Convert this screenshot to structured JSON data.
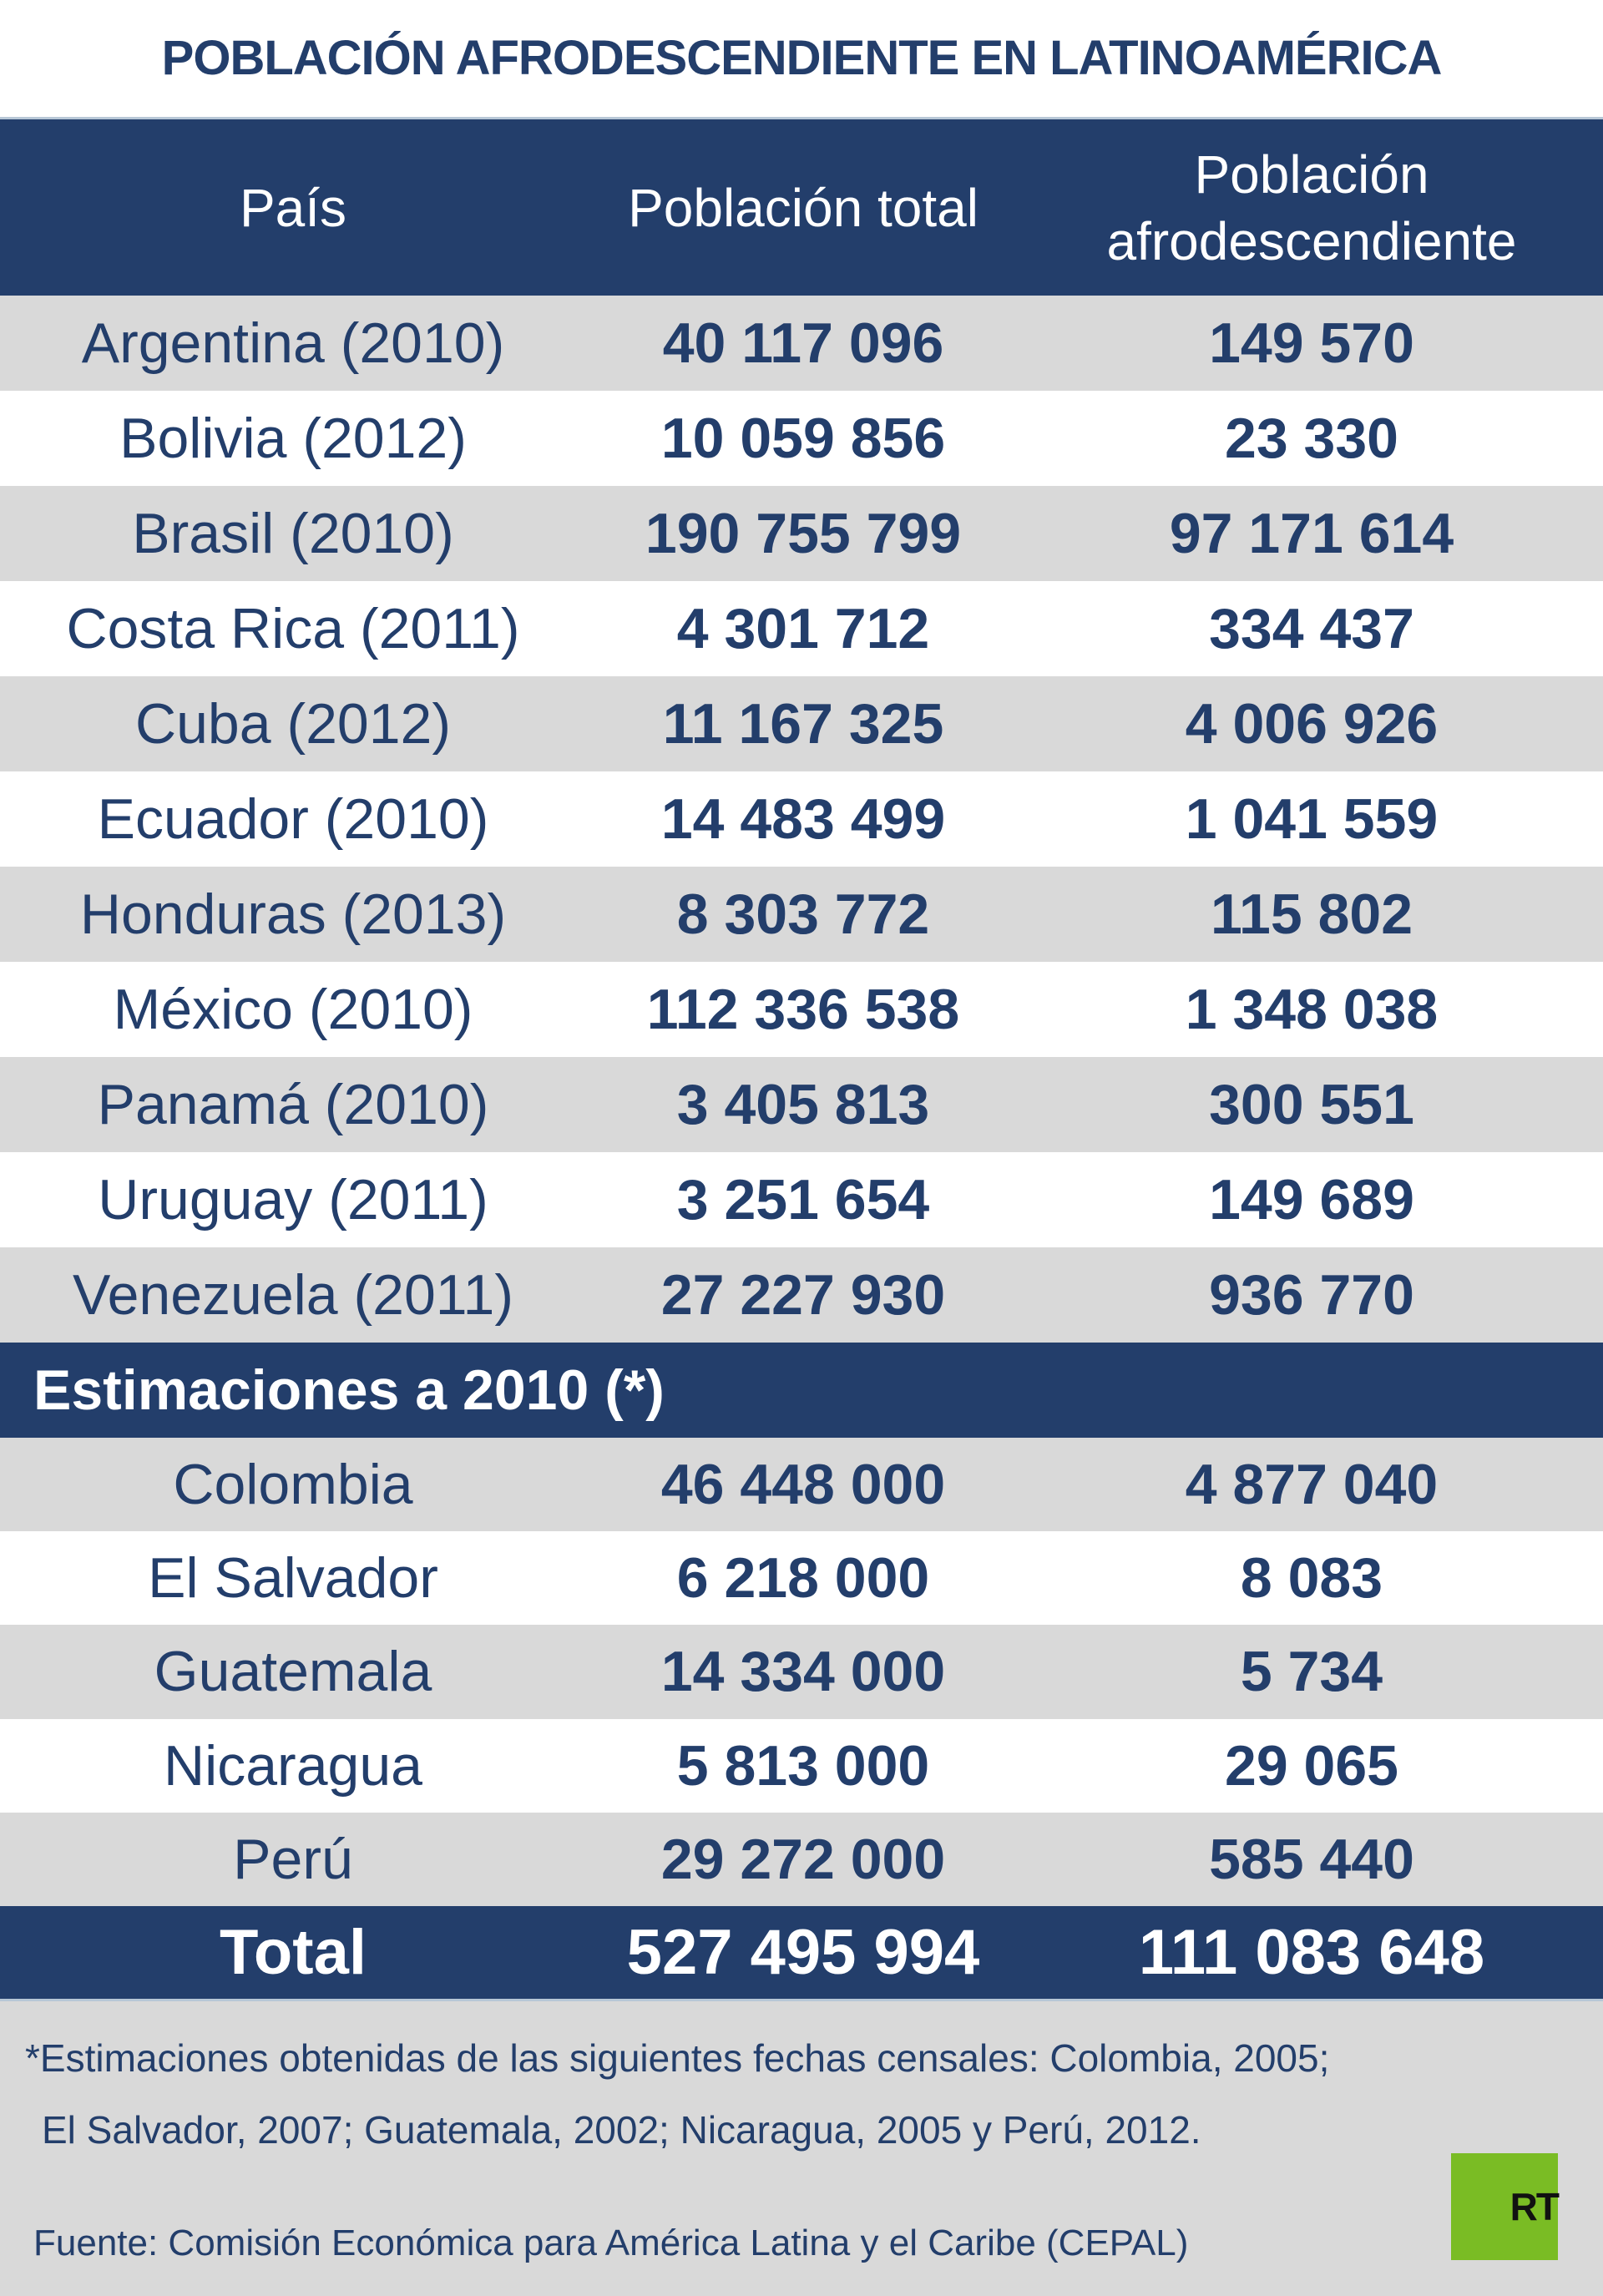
{
  "title": "POBLACIÓN AFRODESCENDIENTE EN LATINOAMÉRICA",
  "headers": {
    "country": "País",
    "total": "Población total",
    "afro_line1": "Población",
    "afro_line2": "afrodescendiente"
  },
  "census_rows": [
    {
      "country": "Argentina (2010)",
      "total": "40 117 096",
      "afro": "149 570"
    },
    {
      "country": "Bolivia (2012)",
      "total": "10 059 856",
      "afro": "23 330"
    },
    {
      "country": "Brasil (2010)",
      "total": "190 755 799",
      "afro": "97 171 614"
    },
    {
      "country": "Costa Rica (2011)",
      "total": "4 301 712",
      "afro": "334 437"
    },
    {
      "country": "Cuba (2012)",
      "total": "11 167 325",
      "afro": "4 006 926"
    },
    {
      "country": "Ecuador (2010)",
      "total": "14 483 499",
      "afro": "1 041 559"
    },
    {
      "country": "Honduras (2013)",
      "total": "8 303 772",
      "afro": "115 802"
    },
    {
      "country": "México (2010)",
      "total": "112 336 538",
      "afro": "1 348 038"
    },
    {
      "country": "Panamá (2010)",
      "total": "3 405 813",
      "afro": "300 551"
    },
    {
      "country": "Uruguay (2011)",
      "total": "3 251 654",
      "afro": "149 689"
    },
    {
      "country": "Venezuela (2011)",
      "total": "27 227 930",
      "afro": "936 770"
    }
  ],
  "estimates_header": "Estimaciones a 2010 (*)",
  "estimate_rows": [
    {
      "country": "Colombia",
      "total": "46 448 000",
      "afro": "4 877 040"
    },
    {
      "country": "El Salvador",
      "total": "6 218 000",
      "afro": "8 083"
    },
    {
      "country": "Guatemala",
      "total": "14 334 000",
      "afro": "5 734"
    },
    {
      "country": "Nicaragua",
      "total": "5 813 000",
      "afro": "29 065"
    },
    {
      "country": "Perú",
      "total": "29 272 000",
      "afro": "585 440"
    }
  ],
  "total": {
    "label": "Total",
    "total": "527 495 994",
    "afro": "111 083 648"
  },
  "note_line1": "*Estimaciones obtenidas de las siguientes fechas censales: Colombia, 2005;",
  "note_line2": "El Salvador, 2007; Guatemala, 2002; Nicaragua, 2005 y Perú, 2012.",
  "source": "Fuente: Comisión Económica para América Latina y el Caribe (CEPAL)",
  "logo": "RT",
  "colors": {
    "navy": "#233e6b",
    "gray": "#d9d9d9",
    "logo_green": "#7abc24"
  }
}
